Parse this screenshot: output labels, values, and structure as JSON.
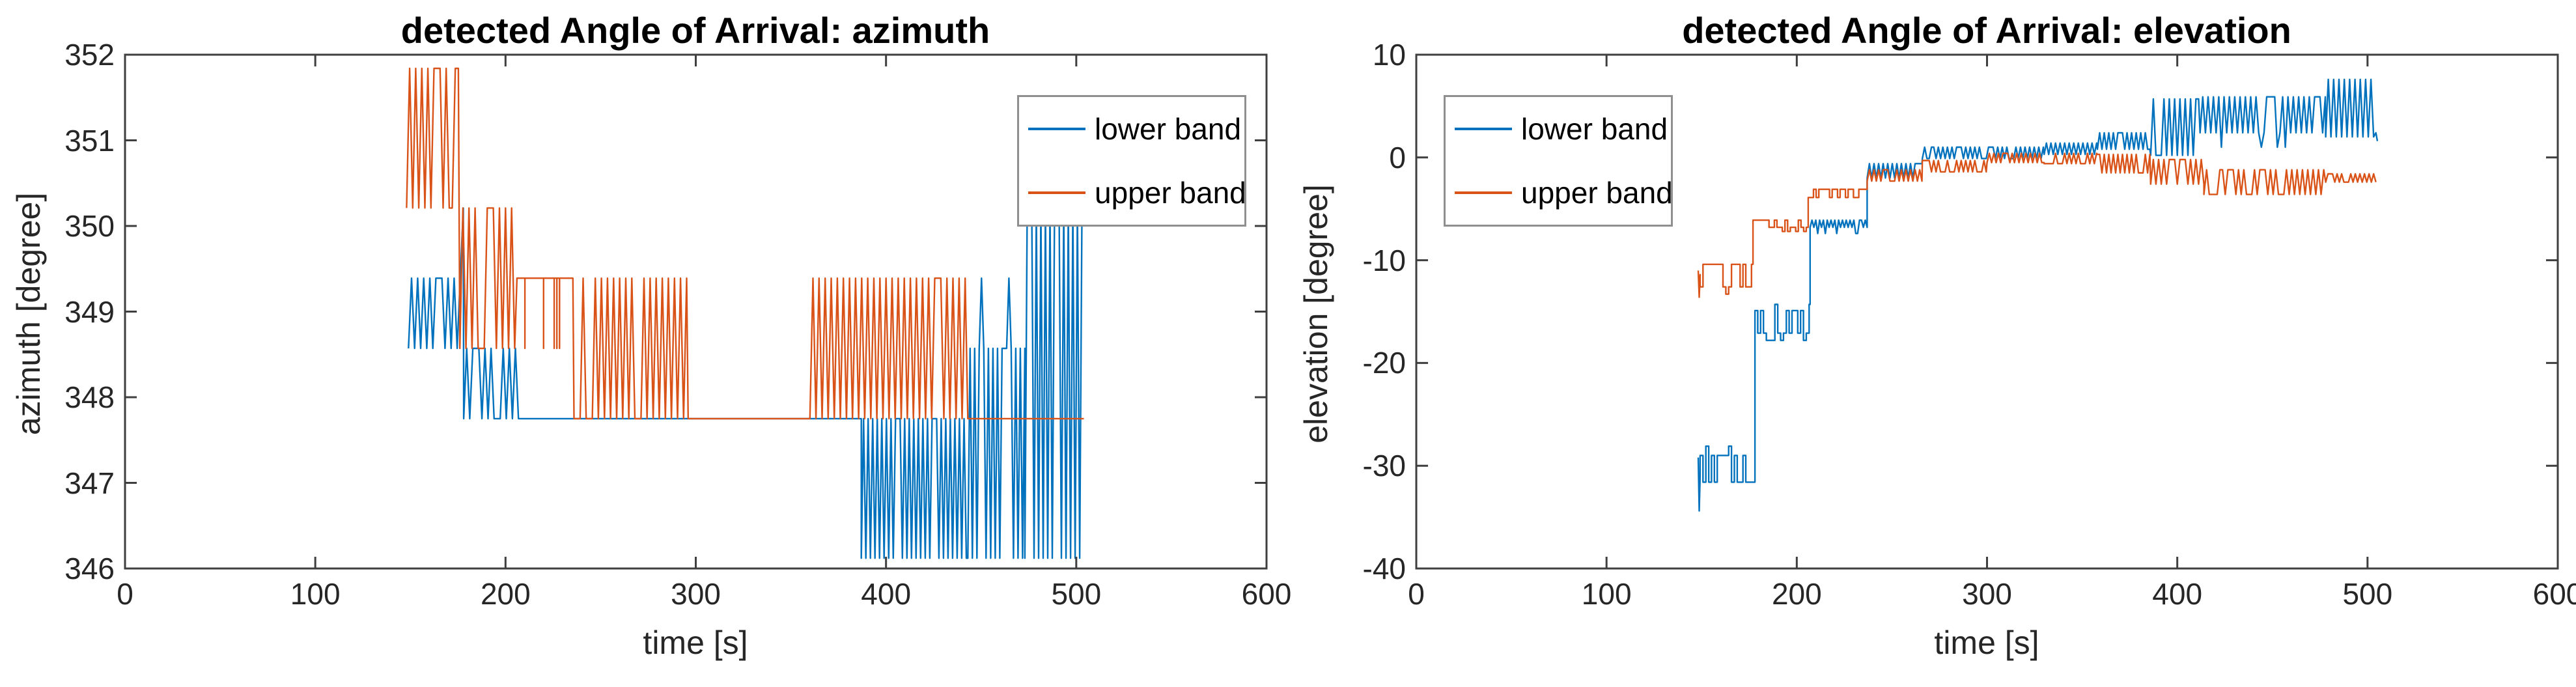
{
  "figure": {
    "background": "#ffffff",
    "axis_color": "#3f3f3f",
    "text_color": "#262626"
  },
  "chart_data": [
    {
      "type": "line",
      "title": "detected Angle of Arrival: azimuth",
      "xlabel": "time [s]",
      "ylabel": "azimuth [degree]",
      "xlim": [
        0,
        600
      ],
      "ylim": [
        346,
        352
      ],
      "xticks": [
        0,
        100,
        200,
        300,
        400,
        500,
        600
      ],
      "yticks": [
        346,
        347,
        348,
        349,
        350,
        351,
        352
      ],
      "grid": false,
      "legend": {
        "location": "northeast",
        "entries": [
          "lower band",
          "upper band"
        ]
      },
      "series": [
        {
          "name": "lower band",
          "color": "#0072BD",
          "segments": [
            {
              "mode": "band",
              "t": [
                149,
                178
              ],
              "lo": 348.57,
              "hi": 349.39,
              "spike": {
                "level": 350.21,
                "p": 0.1
              }
            },
            {
              "mode": "band",
              "t": [
                178,
                208
              ],
              "lo": 347.75,
              "hi": 348.57
            },
            {
              "mode": "flat",
              "t": [
                208,
                387
              ],
              "y": 347.75
            },
            {
              "mode": "band",
              "t": [
                387,
                443
              ],
              "lo": 346.12,
              "hi": 347.75,
              "dt": 1.2
            },
            {
              "mode": "band",
              "t": [
                443,
                473
              ],
              "lo": 346.12,
              "hi": 348.57,
              "dt": 1.2,
              "spike": {
                "level": 349.39,
                "p": 0.05
              }
            },
            {
              "mode": "band",
              "t": [
                473,
                504
              ],
              "lo": 346.12,
              "hi": 350.21,
              "dt": 1.2
            }
          ]
        },
        {
          "name": "upper band",
          "color": "#D95319",
          "segments": [
            {
              "mode": "band",
              "t": [
                148,
                176
              ],
              "lo": 350.21,
              "hi": 351.84
            },
            {
              "mode": "band",
              "t": [
                176,
                206
              ],
              "lo": 348.57,
              "hi": 350.21
            },
            {
              "mode": "sparse",
              "t": [
                206,
                236
              ],
              "hi": 349.39,
              "lo": 348.57,
              "p": 0.35,
              "dt": 1.4
            },
            {
              "mode": "band",
              "t": [
                236,
                296
              ],
              "lo": 347.75,
              "hi": 349.39
            },
            {
              "mode": "flat",
              "t": [
                296,
                360
              ],
              "y": 347.75
            },
            {
              "mode": "band",
              "t": [
                360,
                443
              ],
              "lo": 347.75,
              "hi": 349.39
            },
            {
              "mode": "flat",
              "t": [
                443,
                504
              ],
              "y": 347.75
            }
          ]
        }
      ]
    },
    {
      "type": "line",
      "title": "detected Angle of Arrival: elevation",
      "xlabel": "time [s]",
      "ylabel": "elevation [degree]",
      "xlim": [
        0,
        600
      ],
      "ylim": [
        -40,
        10
      ],
      "xticks": [
        0,
        100,
        200,
        300,
        400,
        500,
        600
      ],
      "yticks": [
        -40,
        -30,
        -20,
        -10,
        0,
        10
      ],
      "grid": false,
      "legend": {
        "location": "northwest",
        "entries": [
          "lower band",
          "upper band"
        ]
      },
      "series": [
        {
          "name": "lower band",
          "color": "#0072BD",
          "segments": [
            {
              "mode": "path",
              "pts": [
                [
                  148.2,
                  -29.2
                ],
                [
                  148.7,
                  -34.4
                ],
                [
                  149.2,
                  -31.0
                ]
              ]
            },
            {
              "mode": "steps",
              "t": [
                149.2,
                178
              ],
              "lo": -31.6,
              "hi": -29.0,
              "hold": 1.5,
              "spike": {
                "level": -28.1,
                "p": 0.12
              },
              "dip": {
                "level": -32.5,
                "p": 0.05
              }
            },
            {
              "mode": "steps",
              "t": [
                178,
                207
              ],
              "lo": -17.1,
              "hi": -14.9,
              "hold": 1.5,
              "spike": {
                "level": -14.3,
                "p": 0.08
              },
              "dip": {
                "level": -17.8,
                "p": 0.06
              }
            },
            {
              "mode": "band",
              "t": [
                207,
                237
              ],
              "lo": -6.8,
              "hi": -6.1,
              "dt": 1.0,
              "dip": {
                "level": -7.4,
                "p": 0.07
              }
            },
            {
              "mode": "band",
              "t": [
                237,
                266
              ],
              "lo": -2.0,
              "hi": -0.6,
              "dt": 1.2
            },
            {
              "mode": "band",
              "t": [
                266,
                330
              ],
              "lo": -0.1,
              "hi": 1.0,
              "dt": 1.2
            },
            {
              "mode": "band",
              "t": [
                330,
                358
              ],
              "lo": 0.3,
              "hi": 1.4,
              "dt": 1.2
            },
            {
              "mode": "band",
              "t": [
                358,
                386
              ],
              "lo": 0.8,
              "hi": 2.4,
              "dt": 1.2
            },
            {
              "mode": "band",
              "t": [
                386,
                412
              ],
              "lo": 0.2,
              "hi": 5.7,
              "dt": 1.4
            },
            {
              "mode": "band",
              "t": [
                412,
                478
              ],
              "lo": 2.4,
              "hi": 5.9,
              "dt": 1.4,
              "dip": {
                "level": 1.0,
                "p": 0.04
              }
            },
            {
              "mode": "band",
              "t": [
                478,
                504
              ],
              "lo": 2.0,
              "hi": 7.6,
              "dt": 1.4
            },
            {
              "mode": "path",
              "pts": [
                [
                  504.4,
                  2.4
                ],
                [
                  505.2,
                  1.6
                ]
              ]
            }
          ]
        },
        {
          "name": "upper band",
          "color": "#D95319",
          "segments": [
            {
              "mode": "path",
              "pts": [
                [
                  148.2,
                  -11.0
                ],
                [
                  148.7,
                  -13.6
                ],
                [
                  149.2,
                  -11.4
                ]
              ]
            },
            {
              "mode": "steps",
              "t": [
                149.2,
                177
              ],
              "lo": -12.6,
              "hi": -10.4,
              "hold": 1.5,
              "dip": {
                "level": -13.3,
                "p": 0.05
              }
            },
            {
              "mode": "steps",
              "t": [
                177,
                206
              ],
              "lo": -6.8,
              "hi": -6.1,
              "hold": 1.4,
              "dip": {
                "level": -7.2,
                "p": 0.06
              }
            },
            {
              "mode": "steps",
              "t": [
                206,
                237
              ],
              "lo": -3.9,
              "hi": -3.1,
              "hold": 1.4
            },
            {
              "mode": "band",
              "t": [
                237,
                266
              ],
              "lo": -2.3,
              "hi": -1.2,
              "dt": 1.2
            },
            {
              "mode": "band",
              "t": [
                266,
                300
              ],
              "lo": -1.4,
              "hi": -0.3,
              "dt": 1.2
            },
            {
              "mode": "band",
              "t": [
                300,
                330
              ],
              "lo": -0.5,
              "hi": 0.4,
              "dt": 1.2
            },
            {
              "mode": "band",
              "t": [
                330,
                358
              ],
              "lo": -0.6,
              "hi": 0.4,
              "dt": 1.2
            },
            {
              "mode": "band",
              "t": [
                358,
                386
              ],
              "lo": -1.5,
              "hi": 0.3,
              "dt": 1.2
            },
            {
              "mode": "band",
              "t": [
                386,
                414
              ],
              "lo": -2.6,
              "hi": -0.2,
              "dt": 1.4
            },
            {
              "mode": "band",
              "t": [
                414,
                478
              ],
              "lo": -3.6,
              "hi": -1.2,
              "dt": 1.4
            },
            {
              "mode": "band",
              "t": [
                478,
                505
              ],
              "lo": -2.4,
              "hi": -1.6,
              "dt": 1.2
            }
          ]
        }
      ]
    }
  ]
}
